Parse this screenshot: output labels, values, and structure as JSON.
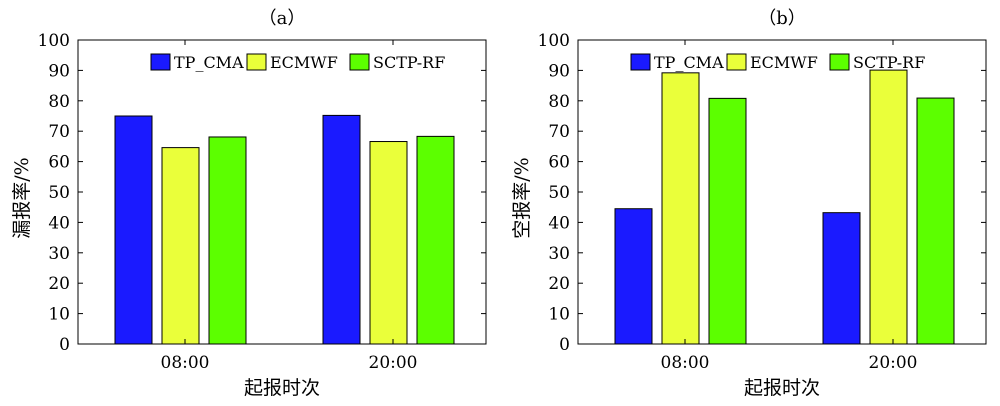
{
  "chart_data": [
    {
      "type": "bar",
      "panel_label": "（a）",
      "title": "",
      "xlabel": "起报时次",
      "ylabel": "漏报率/%",
      "categories": [
        "08:00",
        "20:00"
      ],
      "series": [
        {
          "name": "TP_CMA",
          "color": "#1a1aff",
          "values": [
            75,
            75.2
          ]
        },
        {
          "name": "ECMWF",
          "color": "#eaff3a",
          "values": [
            64.6,
            66.6
          ]
        },
        {
          "name": "SCTP-RF",
          "color": "#5cff00",
          "values": [
            68.1,
            68.3
          ]
        }
      ],
      "ylim": [
        0,
        100
      ],
      "yticks": [
        0,
        10,
        20,
        30,
        40,
        50,
        60,
        70,
        80,
        90,
        100
      ],
      "grid": false,
      "legend": "top-right"
    },
    {
      "type": "bar",
      "panel_label": "（b）",
      "title": "",
      "xlabel": "起报时次",
      "ylabel": "空报率/%",
      "categories": [
        "08:00",
        "20:00"
      ],
      "series": [
        {
          "name": "TP_CMA",
          "color": "#1a1aff",
          "values": [
            44.5,
            43.2
          ]
        },
        {
          "name": "ECMWF",
          "color": "#eaff3a",
          "values": [
            89.2,
            90.1
          ]
        },
        {
          "name": "SCTP-RF",
          "color": "#5cff00",
          "values": [
            80.8,
            80.9
          ]
        }
      ],
      "ylim": [
        0,
        100
      ],
      "yticks": [
        0,
        10,
        20,
        30,
        40,
        50,
        60,
        70,
        80,
        90,
        100
      ],
      "grid": false,
      "legend": "top-right"
    }
  ]
}
